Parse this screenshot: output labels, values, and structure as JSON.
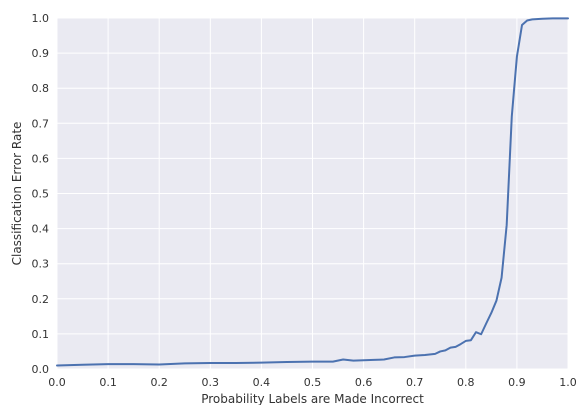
{
  "chart_data": {
    "type": "line",
    "title": "",
    "xlabel": "Probability Labels are Made Incorrect",
    "ylabel": "Classification Error Rate",
    "xlim": [
      0.0,
      1.0
    ],
    "ylim": [
      0.0,
      1.0
    ],
    "grid": true,
    "legend": "none",
    "x_ticks": [
      "0.0",
      "0.1",
      "0.2",
      "0.3",
      "0.4",
      "0.5",
      "0.6",
      "0.7",
      "0.8",
      "0.9",
      "1.0"
    ],
    "y_ticks": [
      "0.0",
      "0.1",
      "0.2",
      "0.3",
      "0.4",
      "0.5",
      "0.6",
      "0.7",
      "0.8",
      "0.9",
      "1.0"
    ],
    "colors": {
      "plot_background": "#eaeaf2",
      "grid": "#ffffff",
      "line": "#4c72b0"
    },
    "series": [
      {
        "x": [
          0.0,
          0.05,
          0.1,
          0.15,
          0.2,
          0.25,
          0.3,
          0.35,
          0.4,
          0.45,
          0.5,
          0.54,
          0.56,
          0.58,
          0.6,
          0.62,
          0.64,
          0.66,
          0.68,
          0.7,
          0.72,
          0.74,
          0.75,
          0.76,
          0.77,
          0.78,
          0.79,
          0.8,
          0.81,
          0.82,
          0.83,
          0.84,
          0.85,
          0.86,
          0.87,
          0.88,
          0.89,
          0.9,
          0.91,
          0.92,
          0.93,
          0.95,
          0.97,
          1.0
        ],
        "y": [
          0.01,
          0.012,
          0.014,
          0.014,
          0.013,
          0.016,
          0.017,
          0.017,
          0.018,
          0.02,
          0.021,
          0.021,
          0.027,
          0.024,
          0.025,
          0.026,
          0.027,
          0.033,
          0.034,
          0.038,
          0.04,
          0.043,
          0.05,
          0.053,
          0.061,
          0.063,
          0.071,
          0.08,
          0.082,
          0.105,
          0.099,
          0.13,
          0.16,
          0.195,
          0.26,
          0.41,
          0.72,
          0.89,
          0.98,
          0.993,
          0.996,
          0.998,
          0.999,
          0.999
        ]
      }
    ]
  }
}
